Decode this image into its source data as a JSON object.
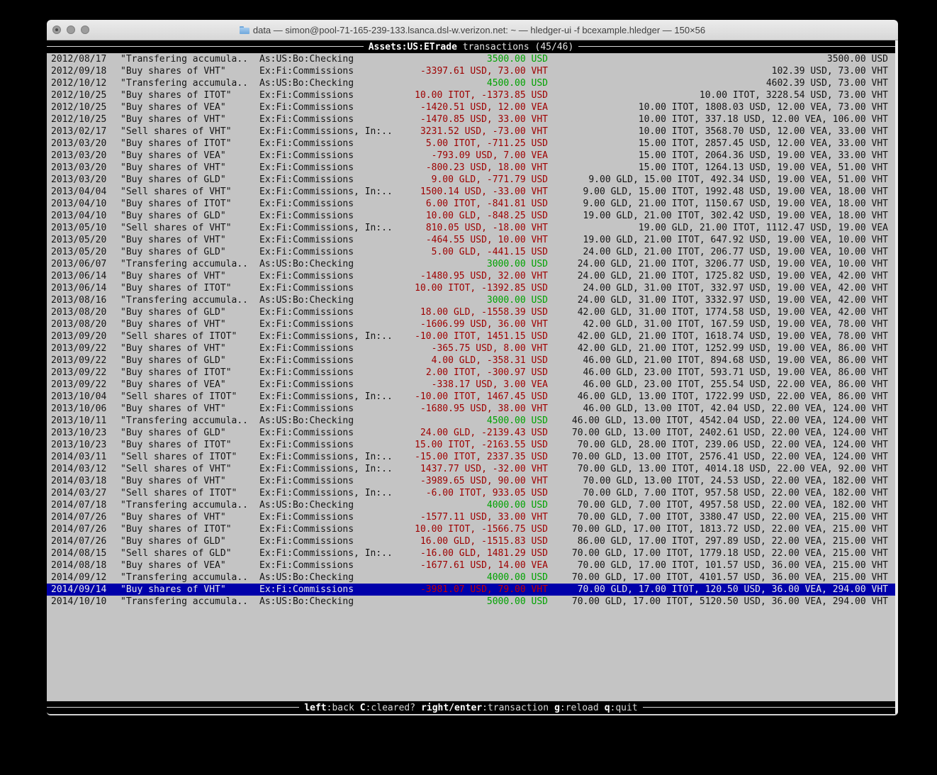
{
  "window": {
    "title": "data — simon@pool-71-165-239-133.lsanca.dsl-w.verizon.net: ~ — hledger-ui -f bcexample.hledger — 150×56"
  },
  "header": {
    "account": "Assets:US:ETrade",
    "rest": " transactions (45/46)"
  },
  "colors": {
    "positive_amount": "#00a300",
    "negative_amount": "#9e0000",
    "selected_row_bg": "#0000aa",
    "terminal_bg": "#c4c4c4",
    "bar_bg": "#000000"
  },
  "register": {
    "selected_index": 44,
    "rows": [
      {
        "date": "2012/08/17",
        "description": "\"Transfering accumula..",
        "account": "As:US:Bo:Checking",
        "amount": "3500.00 USD",
        "amount_color": "pos",
        "balance": "3500.00 USD"
      },
      {
        "date": "2012/09/18",
        "description": "\"Buy shares of VHT\"",
        "account": "Ex:Fi:Commissions",
        "amount": "-3397.61 USD, 73.00 VHT",
        "amount_color": "neg",
        "balance": "102.39 USD, 73.00 VHT"
      },
      {
        "date": "2012/10/12",
        "description": "\"Transfering accumula..",
        "account": "As:US:Bo:Checking",
        "amount": "4500.00 USD",
        "amount_color": "pos",
        "balance": "4602.39 USD, 73.00 VHT"
      },
      {
        "date": "2012/10/25",
        "description": "\"Buy shares of ITOT\"",
        "account": "Ex:Fi:Commissions",
        "amount": "10.00 ITOT, -1373.85 USD",
        "amount_color": "neg",
        "balance": "10.00 ITOT, 3228.54 USD, 73.00 VHT"
      },
      {
        "date": "2012/10/25",
        "description": "\"Buy shares of VEA\"",
        "account": "Ex:Fi:Commissions",
        "amount": "-1420.51 USD, 12.00 VEA",
        "amount_color": "neg",
        "balance": "10.00 ITOT, 1808.03 USD, 12.00 VEA, 73.00 VHT"
      },
      {
        "date": "2012/10/25",
        "description": "\"Buy shares of VHT\"",
        "account": "Ex:Fi:Commissions",
        "amount": "-1470.85 USD, 33.00 VHT",
        "amount_color": "neg",
        "balance": "10.00 ITOT, 337.18 USD, 12.00 VEA, 106.00 VHT"
      },
      {
        "date": "2013/02/17",
        "description": "\"Sell shares of VHT\"",
        "account": "Ex:Fi:Commissions, In:..",
        "amount": "3231.52 USD, -73.00 VHT",
        "amount_color": "neg",
        "balance": "10.00 ITOT, 3568.70 USD, 12.00 VEA, 33.00 VHT"
      },
      {
        "date": "2013/03/20",
        "description": "\"Buy shares of ITOT\"",
        "account": "Ex:Fi:Commissions",
        "amount": "5.00 ITOT, -711.25 USD",
        "amount_color": "neg",
        "balance": "15.00 ITOT, 2857.45 USD, 12.00 VEA, 33.00 VHT"
      },
      {
        "date": "2013/03/20",
        "description": "\"Buy shares of VEA\"",
        "account": "Ex:Fi:Commissions",
        "amount": "-793.09 USD, 7.00 VEA",
        "amount_color": "neg",
        "balance": "15.00 ITOT, 2064.36 USD, 19.00 VEA, 33.00 VHT"
      },
      {
        "date": "2013/03/20",
        "description": "\"Buy shares of VHT\"",
        "account": "Ex:Fi:Commissions",
        "amount": "-800.23 USD, 18.00 VHT",
        "amount_color": "neg",
        "balance": "15.00 ITOT, 1264.13 USD, 19.00 VEA, 51.00 VHT"
      },
      {
        "date": "2013/03/20",
        "description": "\"Buy shares of GLD\"",
        "account": "Ex:Fi:Commissions",
        "amount": "9.00 GLD, -771.79 USD",
        "amount_color": "neg",
        "balance": "9.00 GLD, 15.00 ITOT, 492.34 USD, 19.00 VEA, 51.00 VHT"
      },
      {
        "date": "2013/04/04",
        "description": "\"Sell shares of VHT\"",
        "account": "Ex:Fi:Commissions, In:..",
        "amount": "1500.14 USD, -33.00 VHT",
        "amount_color": "neg",
        "balance": "9.00 GLD, 15.00 ITOT, 1992.48 USD, 19.00 VEA, 18.00 VHT"
      },
      {
        "date": "2013/04/10",
        "description": "\"Buy shares of ITOT\"",
        "account": "Ex:Fi:Commissions",
        "amount": "6.00 ITOT, -841.81 USD",
        "amount_color": "neg",
        "balance": "9.00 GLD, 21.00 ITOT, 1150.67 USD, 19.00 VEA, 18.00 VHT"
      },
      {
        "date": "2013/04/10",
        "description": "\"Buy shares of GLD\"",
        "account": "Ex:Fi:Commissions",
        "amount": "10.00 GLD, -848.25 USD",
        "amount_color": "neg",
        "balance": "19.00 GLD, 21.00 ITOT, 302.42 USD, 19.00 VEA, 18.00 VHT"
      },
      {
        "date": "2013/05/10",
        "description": "\"Sell shares of VHT\"",
        "account": "Ex:Fi:Commissions, In:..",
        "amount": "810.05 USD, -18.00 VHT",
        "amount_color": "neg",
        "balance": "19.00 GLD, 21.00 ITOT, 1112.47 USD, 19.00 VEA"
      },
      {
        "date": "2013/05/20",
        "description": "\"Buy shares of VHT\"",
        "account": "Ex:Fi:Commissions",
        "amount": "-464.55 USD, 10.00 VHT",
        "amount_color": "neg",
        "balance": "19.00 GLD, 21.00 ITOT, 647.92 USD, 19.00 VEA, 10.00 VHT"
      },
      {
        "date": "2013/05/20",
        "description": "\"Buy shares of GLD\"",
        "account": "Ex:Fi:Commissions",
        "amount": "5.00 GLD, -441.15 USD",
        "amount_color": "neg",
        "balance": "24.00 GLD, 21.00 ITOT, 206.77 USD, 19.00 VEA, 10.00 VHT"
      },
      {
        "date": "2013/06/07",
        "description": "\"Transfering accumula..",
        "account": "As:US:Bo:Checking",
        "amount": "3000.00 USD",
        "amount_color": "pos",
        "balance": "24.00 GLD, 21.00 ITOT, 3206.77 USD, 19.00 VEA, 10.00 VHT"
      },
      {
        "date": "2013/06/14",
        "description": "\"Buy shares of VHT\"",
        "account": "Ex:Fi:Commissions",
        "amount": "-1480.95 USD, 32.00 VHT",
        "amount_color": "neg",
        "balance": "24.00 GLD, 21.00 ITOT, 1725.82 USD, 19.00 VEA, 42.00 VHT"
      },
      {
        "date": "2013/06/14",
        "description": "\"Buy shares of ITOT\"",
        "account": "Ex:Fi:Commissions",
        "amount": "10.00 ITOT, -1392.85 USD",
        "amount_color": "neg",
        "balance": "24.00 GLD, 31.00 ITOT, 332.97 USD, 19.00 VEA, 42.00 VHT"
      },
      {
        "date": "2013/08/16",
        "description": "\"Transfering accumula..",
        "account": "As:US:Bo:Checking",
        "amount": "3000.00 USD",
        "amount_color": "pos",
        "balance": "24.00 GLD, 31.00 ITOT, 3332.97 USD, 19.00 VEA, 42.00 VHT"
      },
      {
        "date": "2013/08/20",
        "description": "\"Buy shares of GLD\"",
        "account": "Ex:Fi:Commissions",
        "amount": "18.00 GLD, -1558.39 USD",
        "amount_color": "neg",
        "balance": "42.00 GLD, 31.00 ITOT, 1774.58 USD, 19.00 VEA, 42.00 VHT"
      },
      {
        "date": "2013/08/20",
        "description": "\"Buy shares of VHT\"",
        "account": "Ex:Fi:Commissions",
        "amount": "-1606.99 USD, 36.00 VHT",
        "amount_color": "neg",
        "balance": "42.00 GLD, 31.00 ITOT, 167.59 USD, 19.00 VEA, 78.00 VHT"
      },
      {
        "date": "2013/09/20",
        "description": "\"Sell shares of ITOT\"",
        "account": "Ex:Fi:Commissions, In:..",
        "amount": "-10.00 ITOT, 1451.15 USD",
        "amount_color": "neg",
        "balance": "42.00 GLD, 21.00 ITOT, 1618.74 USD, 19.00 VEA, 78.00 VHT"
      },
      {
        "date": "2013/09/22",
        "description": "\"Buy shares of VHT\"",
        "account": "Ex:Fi:Commissions",
        "amount": "-365.75 USD, 8.00 VHT",
        "amount_color": "neg",
        "balance": "42.00 GLD, 21.00 ITOT, 1252.99 USD, 19.00 VEA, 86.00 VHT"
      },
      {
        "date": "2013/09/22",
        "description": "\"Buy shares of GLD\"",
        "account": "Ex:Fi:Commissions",
        "amount": "4.00 GLD, -358.31 USD",
        "amount_color": "neg",
        "balance": "46.00 GLD, 21.00 ITOT, 894.68 USD, 19.00 VEA, 86.00 VHT"
      },
      {
        "date": "2013/09/22",
        "description": "\"Buy shares of ITOT\"",
        "account": "Ex:Fi:Commissions",
        "amount": "2.00 ITOT, -300.97 USD",
        "amount_color": "neg",
        "balance": "46.00 GLD, 23.00 ITOT, 593.71 USD, 19.00 VEA, 86.00 VHT"
      },
      {
        "date": "2013/09/22",
        "description": "\"Buy shares of VEA\"",
        "account": "Ex:Fi:Commissions",
        "amount": "-338.17 USD, 3.00 VEA",
        "amount_color": "neg",
        "balance": "46.00 GLD, 23.00 ITOT, 255.54 USD, 22.00 VEA, 86.00 VHT"
      },
      {
        "date": "2013/10/04",
        "description": "\"Sell shares of ITOT\"",
        "account": "Ex:Fi:Commissions, In:..",
        "amount": "-10.00 ITOT, 1467.45 USD",
        "amount_color": "neg",
        "balance": "46.00 GLD, 13.00 ITOT, 1722.99 USD, 22.00 VEA, 86.00 VHT"
      },
      {
        "date": "2013/10/06",
        "description": "\"Buy shares of VHT\"",
        "account": "Ex:Fi:Commissions",
        "amount": "-1680.95 USD, 38.00 VHT",
        "amount_color": "neg",
        "balance": "46.00 GLD, 13.00 ITOT, 42.04 USD, 22.00 VEA, 124.00 VHT"
      },
      {
        "date": "2013/10/11",
        "description": "\"Transfering accumula..",
        "account": "As:US:Bo:Checking",
        "amount": "4500.00 USD",
        "amount_color": "pos",
        "balance": "46.00 GLD, 13.00 ITOT, 4542.04 USD, 22.00 VEA, 124.00 VHT"
      },
      {
        "date": "2013/10/23",
        "description": "\"Buy shares of GLD\"",
        "account": "Ex:Fi:Commissions",
        "amount": "24.00 GLD, -2139.43 USD",
        "amount_color": "neg",
        "balance": "70.00 GLD, 13.00 ITOT, 2402.61 USD, 22.00 VEA, 124.00 VHT"
      },
      {
        "date": "2013/10/23",
        "description": "\"Buy shares of ITOT\"",
        "account": "Ex:Fi:Commissions",
        "amount": "15.00 ITOT, -2163.55 USD",
        "amount_color": "neg",
        "balance": "70.00 GLD, 28.00 ITOT, 239.06 USD, 22.00 VEA, 124.00 VHT"
      },
      {
        "date": "2014/03/11",
        "description": "\"Sell shares of ITOT\"",
        "account": "Ex:Fi:Commissions, In:..",
        "amount": "-15.00 ITOT, 2337.35 USD",
        "amount_color": "neg",
        "balance": "70.00 GLD, 13.00 ITOT, 2576.41 USD, 22.00 VEA, 124.00 VHT"
      },
      {
        "date": "2014/03/12",
        "description": "\"Sell shares of VHT\"",
        "account": "Ex:Fi:Commissions, In:..",
        "amount": "1437.77 USD, -32.00 VHT",
        "amount_color": "neg",
        "balance": "70.00 GLD, 13.00 ITOT, 4014.18 USD, 22.00 VEA, 92.00 VHT"
      },
      {
        "date": "2014/03/18",
        "description": "\"Buy shares of VHT\"",
        "account": "Ex:Fi:Commissions",
        "amount": "-3989.65 USD, 90.00 VHT",
        "amount_color": "neg",
        "balance": "70.00 GLD, 13.00 ITOT, 24.53 USD, 22.00 VEA, 182.00 VHT"
      },
      {
        "date": "2014/03/27",
        "description": "\"Sell shares of ITOT\"",
        "account": "Ex:Fi:Commissions, In:..",
        "amount": "-6.00 ITOT, 933.05 USD",
        "amount_color": "neg",
        "balance": "70.00 GLD, 7.00 ITOT, 957.58 USD, 22.00 VEA, 182.00 VHT"
      },
      {
        "date": "2014/07/18",
        "description": "\"Transfering accumula..",
        "account": "As:US:Bo:Checking",
        "amount": "4000.00 USD",
        "amount_color": "pos",
        "balance": "70.00 GLD, 7.00 ITOT, 4957.58 USD, 22.00 VEA, 182.00 VHT"
      },
      {
        "date": "2014/07/26",
        "description": "\"Buy shares of VHT\"",
        "account": "Ex:Fi:Commissions",
        "amount": "-1577.11 USD, 33.00 VHT",
        "amount_color": "neg",
        "balance": "70.00 GLD, 7.00 ITOT, 3380.47 USD, 22.00 VEA, 215.00 VHT"
      },
      {
        "date": "2014/07/26",
        "description": "\"Buy shares of ITOT\"",
        "account": "Ex:Fi:Commissions",
        "amount": "10.00 ITOT, -1566.75 USD",
        "amount_color": "neg",
        "balance": "70.00 GLD, 17.00 ITOT, 1813.72 USD, 22.00 VEA, 215.00 VHT"
      },
      {
        "date": "2014/07/26",
        "description": "\"Buy shares of GLD\"",
        "account": "Ex:Fi:Commissions",
        "amount": "16.00 GLD, -1515.83 USD",
        "amount_color": "neg",
        "balance": "86.00 GLD, 17.00 ITOT, 297.89 USD, 22.00 VEA, 215.00 VHT"
      },
      {
        "date": "2014/08/15",
        "description": "\"Sell shares of GLD\"",
        "account": "Ex:Fi:Commissions, In:..",
        "amount": "-16.00 GLD, 1481.29 USD",
        "amount_color": "neg",
        "balance": "70.00 GLD, 17.00 ITOT, 1779.18 USD, 22.00 VEA, 215.00 VHT"
      },
      {
        "date": "2014/08/18",
        "description": "\"Buy shares of VEA\"",
        "account": "Ex:Fi:Commissions",
        "amount": "-1677.61 USD, 14.00 VEA",
        "amount_color": "neg",
        "balance": "70.00 GLD, 17.00 ITOT, 101.57 USD, 36.00 VEA, 215.00 VHT"
      },
      {
        "date": "2014/09/12",
        "description": "\"Transfering accumula..",
        "account": "As:US:Bo:Checking",
        "amount": "4000.00 USD",
        "amount_color": "pos",
        "balance": "70.00 GLD, 17.00 ITOT, 4101.57 USD, 36.00 VEA, 215.00 VHT"
      },
      {
        "date": "2014/09/14",
        "description": "\"Buy shares of VHT\"",
        "account": "Ex:Fi:Commissions",
        "amount": "-3981.07 USD, 79.00 VHT",
        "amount_color": "neg",
        "balance": "70.00 GLD, 17.00 ITOT, 120.50 USD, 36.00 VEA, 294.00 VHT"
      },
      {
        "date": "2014/10/10",
        "description": "\"Transfering accumula..",
        "account": "As:US:Bo:Checking",
        "amount": "5000.00 USD",
        "amount_color": "pos",
        "balance": "70.00 GLD, 17.00 ITOT, 5120.50 USD, 36.00 VEA, 294.00 VHT"
      }
    ]
  },
  "footer": {
    "hints": [
      {
        "key": "left",
        "desc": ":back"
      },
      {
        "key": "C",
        "desc": ":cleared?"
      },
      {
        "key": "right/enter",
        "desc": ":transaction"
      },
      {
        "key": "g",
        "desc": ":reload"
      },
      {
        "key": "q",
        "desc": ":quit"
      }
    ]
  }
}
